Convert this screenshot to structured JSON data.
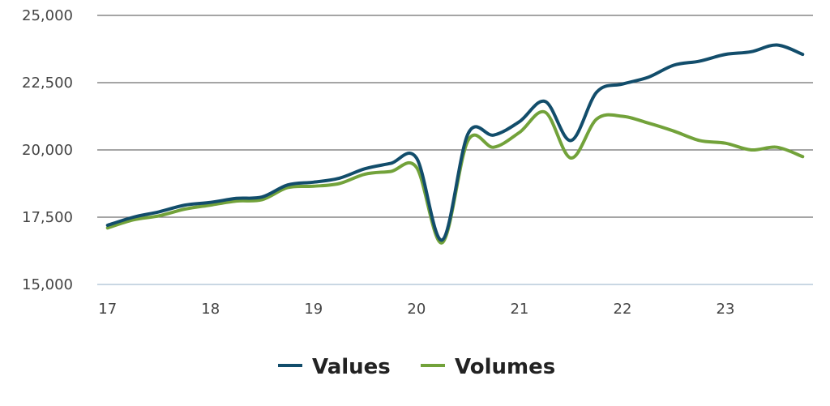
{
  "chart_data": {
    "type": "line",
    "x": [
      17.0,
      17.25,
      17.5,
      17.75,
      18.0,
      18.25,
      18.5,
      18.75,
      19.0,
      19.25,
      19.5,
      19.75,
      20.0,
      20.25,
      20.5,
      20.75,
      21.0,
      21.25,
      21.5,
      21.75,
      22.0,
      22.25,
      22.5,
      22.75,
      23.0,
      23.25,
      23.5,
      23.75
    ],
    "x_ticks": [
      "17",
      "18",
      "19",
      "20",
      "21",
      "22",
      "23"
    ],
    "x_tick_values": [
      17,
      18,
      19,
      20,
      21,
      22,
      23
    ],
    "xlim": [
      16.9,
      23.85
    ],
    "y_ticks": [
      "15,000",
      "17,500",
      "20,000",
      "22,500",
      "25,000"
    ],
    "y_tick_values": [
      15000,
      17500,
      20000,
      22500,
      25000
    ],
    "ylim": [
      15000,
      25000
    ],
    "grid": true,
    "legend_position": "bottom-center",
    "series": [
      {
        "name": "Values",
        "color": "#124d6b",
        "values": [
          17200,
          17500,
          17700,
          17950,
          18050,
          18200,
          18250,
          18700,
          18800,
          18950,
          19300,
          19500,
          19700,
          16650,
          20600,
          20550,
          21050,
          21800,
          20350,
          22150,
          22450,
          22700,
          23150,
          23300,
          23550,
          23650,
          23900,
          23550
        ]
      },
      {
        "name": "Volumes",
        "color": "#72a23a",
        "values": [
          17100,
          17400,
          17550,
          17800,
          17950,
          18100,
          18150,
          18600,
          18650,
          18750,
          19100,
          19200,
          19350,
          16550,
          20350,
          20100,
          20650,
          21400,
          19700,
          21150,
          21250,
          21000,
          20700,
          20350,
          20250,
          20000,
          20100,
          19750
        ]
      }
    ]
  }
}
